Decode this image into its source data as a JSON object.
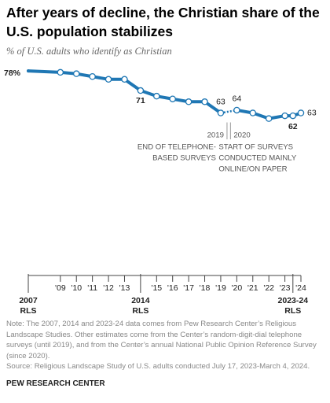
{
  "chart_data": {
    "type": "line",
    "title": "After years of decline, the Christian share of the U.S. population stabilizes",
    "subtitle": "% of U.S. adults who identify as Christian",
    "x": [
      2007,
      2009,
      2010,
      2011,
      2012,
      2013,
      2014,
      2015,
      2016,
      2017,
      2018,
      2019,
      2020,
      2021,
      2022,
      2023,
      2023.5,
      2024
    ],
    "series": [
      {
        "color": "#1f77b4",
        "values": [
          78,
          77.5,
          77,
          76,
          75,
          75,
          71,
          69,
          68,
          67,
          67,
          63,
          64,
          63,
          61,
          62,
          62,
          63
        ],
        "value_labels": [
          "78%",
          null,
          null,
          null,
          null,
          null,
          "71",
          null,
          null,
          null,
          null,
          "63",
          "64",
          null,
          null,
          null,
          "62",
          "63"
        ]
      }
    ],
    "xlim": [
      2007,
      2024
    ],
    "ylim": [
      55,
      80
    ],
    "xticks": [
      {
        "value": 2007,
        "label": "2007",
        "sublabel": "RLS"
      },
      {
        "value": 2009,
        "label": "'09"
      },
      {
        "value": 2010,
        "label": "'10"
      },
      {
        "value": 2011,
        "label": "'11"
      },
      {
        "value": 2012,
        "label": "'12"
      },
      {
        "value": 2013,
        "label": "'13"
      },
      {
        "value": 2014,
        "label": "2014",
        "sublabel": "RLS"
      },
      {
        "value": 2015,
        "label": "'15"
      },
      {
        "value": 2016,
        "label": "'16"
      },
      {
        "value": 2017,
        "label": "'17"
      },
      {
        "value": 2018,
        "label": "'18"
      },
      {
        "value": 2019,
        "label": "'19"
      },
      {
        "value": 2020,
        "label": "'20"
      },
      {
        "value": 2021,
        "label": "'21"
      },
      {
        "value": 2022,
        "label": "'22"
      },
      {
        "value": 2023,
        "label": "'23"
      },
      {
        "value": 2023.5,
        "label": "2023-24",
        "sublabel": "RLS"
      },
      {
        "value": 2024,
        "label": "'24"
      }
    ],
    "annotations": [
      {
        "x": 2019,
        "label": "2019",
        "text": [
          "END OF TELEPHONE-",
          "BASED SURVEYS"
        ]
      },
      {
        "x": 2020,
        "label": "2020",
        "text": [
          "START OF SURVEYS",
          "CONDUCTED MAINLY",
          "ONLINE/ON PAPER"
        ]
      }
    ],
    "note": "Note: The 2007, 2014 and 2023-24 data comes from Pew Research Center’s Religious Landscape Studies. Other estimates come from the Center’s random-digit-dial telephone surveys (until 2019), and from the Center’s annual National Public Opinion Reference Survey (since 2020).",
    "source": "Source: Religious Landscape Study of U.S. adults conducted July 17, 2023-March 4, 2024.",
    "footer": "PEW RESEARCH CENTER"
  }
}
